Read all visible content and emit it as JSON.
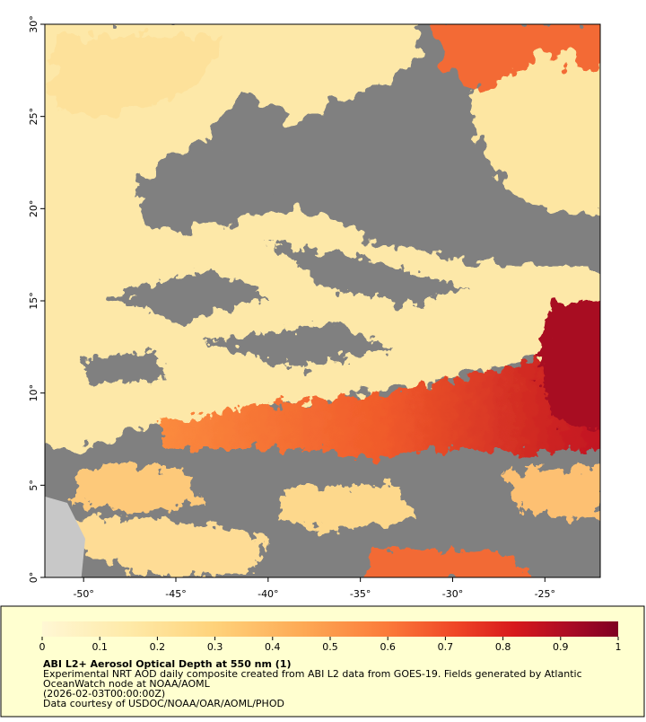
{
  "map": {
    "xlim": [
      -52.1,
      -22
    ],
    "ylim": [
      0,
      30
    ],
    "xticks": [
      {
        "value": -50,
        "label": "-50°"
      },
      {
        "value": -45,
        "label": "-45°"
      },
      {
        "value": -40,
        "label": "-40°"
      },
      {
        "value": -35,
        "label": "-35°"
      },
      {
        "value": -30,
        "label": "-30°"
      },
      {
        "value": -25,
        "label": "-25°"
      }
    ],
    "yticks": [
      {
        "value": 0,
        "label": "0°"
      },
      {
        "value": 5,
        "label": "5°"
      },
      {
        "value": 10,
        "label": "10°"
      },
      {
        "value": 15,
        "label": "15°"
      },
      {
        "value": 20,
        "label": "20°"
      },
      {
        "value": 25,
        "label": "25°"
      },
      {
        "value": 30,
        "label": "30°"
      }
    ]
  },
  "colorbar": {
    "lim": [
      0,
      1
    ],
    "ticks": [
      0,
      0.1,
      0.2,
      0.3,
      0.4,
      0.5,
      0.6,
      0.7,
      0.8,
      0.9,
      1
    ]
  },
  "caption": {
    "title": "ABI L2+ Aerosol Optical Depth at 550 nm (1)",
    "lines": [
      "Experimental NRT AOD daily composite created from ABI L2 data from GOES-19. Fields generated by Atlantic",
      "OceanWatch node at NOAA/AOML",
      "(2026-02-03T00:00:00Z)",
      "Data courtesy of USDOC/NOAA/OAR/AOML/PHOD"
    ]
  }
}
